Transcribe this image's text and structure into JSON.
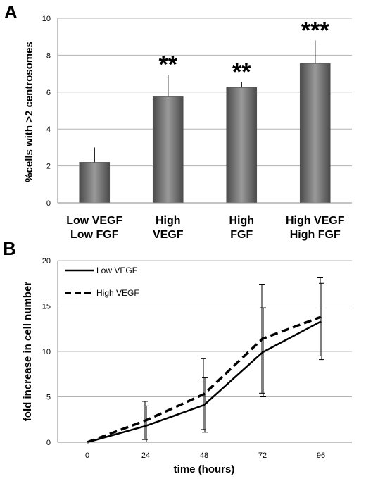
{
  "panels": {
    "a_label": "A",
    "b_label": "B"
  },
  "colors": {
    "bar_dark": "#4a4a4a",
    "bar_light": "#9a9a9a",
    "grid": "#b3b3b3",
    "line": "#000000"
  },
  "chart_data": [
    {
      "type": "bar",
      "panel": "A",
      "title": "",
      "ylabel": "%cells with >2 centrosomes",
      "xlabel": "",
      "ylim": [
        0,
        10
      ],
      "yticks": [
        "0",
        "2",
        "4",
        "6",
        "8",
        "10"
      ],
      "grid": true,
      "categories": [
        [
          "Low VEGF",
          "Low FGF"
        ],
        [
          "High",
          "VEGF"
        ],
        [
          "High",
          "FGF"
        ],
        [
          "High VEGF",
          "High FGF"
        ]
      ],
      "values": [
        2.2,
        5.75,
        6.25,
        7.55
      ],
      "errors": [
        0.8,
        1.2,
        0.3,
        1.25
      ],
      "annotations": [
        "",
        "**",
        "**",
        "***"
      ]
    },
    {
      "type": "line",
      "panel": "B",
      "title": "",
      "xlabel": "time (hours)",
      "ylabel": "fold increase in cell number",
      "x": [
        0,
        24,
        48,
        72,
        96
      ],
      "xticks": [
        "0",
        "24",
        "48",
        "72",
        "96"
      ],
      "ylim": [
        0,
        20
      ],
      "yticks": [
        "0",
        "5",
        "10",
        "15",
        "20"
      ],
      "grid": true,
      "legend_position": "top-left",
      "series": [
        {
          "name": "Low VEGF",
          "style": "solid",
          "values": [
            0,
            1.8,
            4.1,
            9.9,
            13.3
          ],
          "errors": [
            0,
            2.2,
            3.0,
            4.9,
            4.2
          ]
        },
        {
          "name": "High VEGF",
          "style": "dashed",
          "values": [
            0,
            2.4,
            5.3,
            11.4,
            13.8
          ],
          "errors": [
            0,
            2.1,
            3.9,
            6.0,
            4.3
          ]
        }
      ]
    }
  ]
}
